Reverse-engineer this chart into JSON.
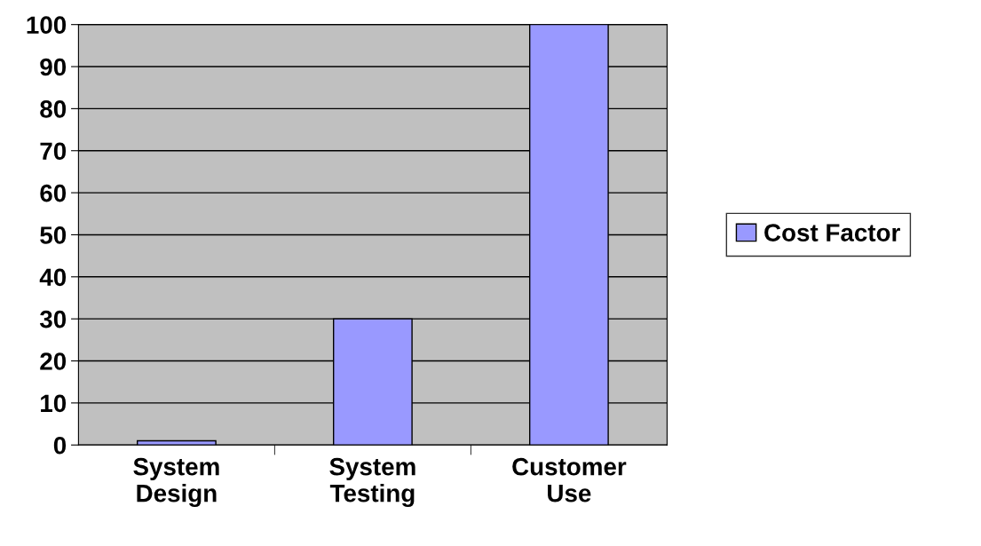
{
  "chart_data": {
    "type": "bar",
    "categories": [
      "System Design",
      "System Testing",
      "Customer Use"
    ],
    "series": [
      {
        "name": "Cost Factor",
        "color": "#9999ff",
        "values": [
          1,
          30,
          100
        ]
      }
    ],
    "ylim": [
      0,
      100
    ],
    "yticks": [
      0,
      10,
      20,
      30,
      40,
      50,
      60,
      70,
      80,
      90,
      100
    ],
    "grid": "y",
    "legend": "right"
  }
}
